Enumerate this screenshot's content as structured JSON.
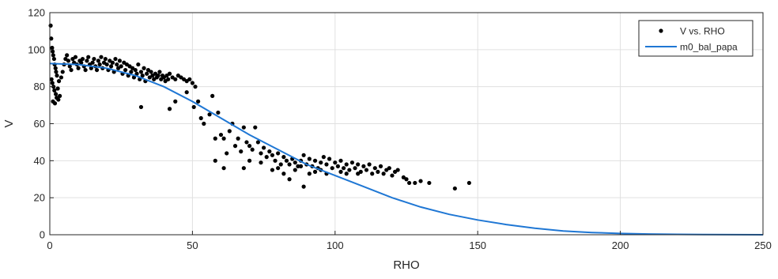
{
  "chart_data": {
    "type": "scatter",
    "title": "",
    "xlabel": "RHO",
    "ylabel": "V",
    "xlim": [
      0,
      250
    ],
    "ylim": [
      0,
      120
    ],
    "xticks": [
      "0",
      "50",
      "100",
      "150",
      "200",
      "250"
    ],
    "yticks": [
      "0",
      "20",
      "40",
      "60",
      "80",
      "100",
      "120"
    ],
    "grid": true,
    "legend_position": "top-right",
    "colors": {
      "scatter": "#000000",
      "fit": "#1f77d4",
      "grid": "#e0e0e0",
      "axes": "#262626"
    },
    "series": [
      {
        "name": "V vs. RHO",
        "kind": "scatter",
        "points": [
          [
            0.3,
            113
          ],
          [
            0.5,
            106
          ],
          [
            0.8,
            101
          ],
          [
            1,
            99
          ],
          [
            1.2,
            97
          ],
          [
            1.5,
            95
          ],
          [
            1.7,
            92
          ],
          [
            2,
            90
          ],
          [
            2.2,
            88
          ],
          [
            2.5,
            86
          ],
          [
            0.6,
            84
          ],
          [
            0.9,
            82
          ],
          [
            1.3,
            80
          ],
          [
            1.6,
            78
          ],
          [
            2.1,
            76
          ],
          [
            2.4,
            74
          ],
          [
            1.1,
            72
          ],
          [
            1.8,
            71
          ],
          [
            3,
            73
          ],
          [
            3.5,
            75
          ],
          [
            2.8,
            79
          ],
          [
            3.2,
            83
          ],
          [
            4,
            85
          ],
          [
            4.5,
            88
          ],
          [
            5,
            92
          ],
          [
            5.5,
            95
          ],
          [
            6,
            97
          ],
          [
            6.5,
            94
          ],
          [
            7,
            91
          ],
          [
            7.5,
            89
          ],
          [
            8,
            95
          ],
          [
            8.5,
            93
          ],
          [
            9,
            96
          ],
          [
            9.5,
            92
          ],
          [
            10,
            90
          ],
          [
            10.5,
            94
          ],
          [
            11,
            93
          ],
          [
            11.5,
            95
          ],
          [
            12,
            91
          ],
          [
            12.5,
            89
          ],
          [
            13,
            94
          ],
          [
            13.5,
            96
          ],
          [
            14,
            92
          ],
          [
            14.5,
            90
          ],
          [
            15,
            93
          ],
          [
            15.5,
            95
          ],
          [
            16,
            91
          ],
          [
            16.5,
            89
          ],
          [
            17,
            94
          ],
          [
            17.5,
            92
          ],
          [
            18,
            96
          ],
          [
            18.5,
            90
          ],
          [
            19,
            93
          ],
          [
            19.5,
            95
          ],
          [
            20,
            92
          ],
          [
            20.5,
            89
          ],
          [
            21,
            94
          ],
          [
            21.5,
            91
          ],
          [
            22,
            93
          ],
          [
            22.5,
            88
          ],
          [
            23,
            95
          ],
          [
            23.5,
            92
          ],
          [
            24,
            90
          ],
          [
            24.5,
            94
          ],
          [
            25,
            91
          ],
          [
            25.5,
            87
          ],
          [
            26,
            93
          ],
          [
            26.5,
            89
          ],
          [
            27,
            92
          ],
          [
            27.5,
            86
          ],
          [
            28,
            91
          ],
          [
            28.5,
            88
          ],
          [
            29,
            90
          ],
          [
            29.5,
            85
          ],
          [
            30,
            89
          ],
          [
            30.5,
            87
          ],
          [
            31,
            92
          ],
          [
            31.5,
            84
          ],
          [
            32,
            88
          ],
          [
            32.5,
            86
          ],
          [
            33,
            90
          ],
          [
            33.5,
            83
          ],
          [
            34,
            87
          ],
          [
            34.5,
            89
          ],
          [
            35,
            85
          ],
          [
            35.5,
            88
          ],
          [
            36,
            86
          ],
          [
            36.5,
            84
          ],
          [
            37,
            87
          ],
          [
            37.5,
            85
          ],
          [
            38,
            86
          ],
          [
            38.5,
            88
          ],
          [
            39,
            84
          ],
          [
            39.5,
            86
          ],
          [
            40,
            85
          ],
          [
            40.5,
            83
          ],
          [
            41,
            86
          ],
          [
            41.5,
            84
          ],
          [
            42,
            87
          ],
          [
            43,
            85
          ],
          [
            44,
            84
          ],
          [
            45,
            86
          ],
          [
            46,
            85
          ],
          [
            47,
            84
          ],
          [
            48,
            83
          ],
          [
            49,
            84
          ],
          [
            50,
            82
          ],
          [
            51,
            80
          ],
          [
            52,
            72
          ],
          [
            50.5,
            69
          ],
          [
            32,
            69
          ],
          [
            42,
            68
          ],
          [
            44,
            72
          ],
          [
            48,
            77
          ],
          [
            53,
            63
          ],
          [
            54,
            60
          ],
          [
            56,
            65
          ],
          [
            57,
            75
          ],
          [
            59,
            66
          ],
          [
            60,
            54
          ],
          [
            58,
            52
          ],
          [
            61,
            52
          ],
          [
            63,
            56
          ],
          [
            64,
            60
          ],
          [
            65,
            48
          ],
          [
            66,
            52
          ],
          [
            67,
            45
          ],
          [
            68,
            58
          ],
          [
            69,
            50
          ],
          [
            70,
            48
          ],
          [
            71,
            46
          ],
          [
            72,
            58
          ],
          [
            73,
            50
          ],
          [
            74,
            44
          ],
          [
            75,
            47
          ],
          [
            76,
            42
          ],
          [
            77,
            45
          ],
          [
            78,
            43
          ],
          [
            79,
            40
          ],
          [
            80,
            44
          ],
          [
            81,
            38
          ],
          [
            82,
            42
          ],
          [
            83,
            40
          ],
          [
            84,
            38
          ],
          [
            85,
            41
          ],
          [
            86,
            39
          ],
          [
            87,
            37
          ],
          [
            88,
            40
          ],
          [
            89,
            43
          ],
          [
            90,
            38
          ],
          [
            91,
            41
          ],
          [
            92,
            37
          ],
          [
            93,
            40
          ],
          [
            94,
            36
          ],
          [
            95,
            39
          ],
          [
            96,
            42
          ],
          [
            97,
            38
          ],
          [
            98,
            41
          ],
          [
            99,
            36
          ],
          [
            100,
            39
          ],
          [
            101,
            37
          ],
          [
            102,
            40
          ],
          [
            103,
            36
          ],
          [
            104,
            38
          ],
          [
            105,
            35
          ],
          [
            106,
            39
          ],
          [
            107,
            36
          ],
          [
            108,
            38
          ],
          [
            109,
            34
          ],
          [
            110,
            37
          ],
          [
            111,
            35
          ],
          [
            112,
            38
          ],
          [
            113,
            33
          ],
          [
            114,
            36
          ],
          [
            115,
            34
          ],
          [
            116,
            37
          ],
          [
            117,
            33
          ],
          [
            118,
            35
          ],
          [
            119,
            36
          ],
          [
            120,
            32
          ],
          [
            121,
            34
          ],
          [
            122,
            35
          ],
          [
            124,
            31
          ],
          [
            125,
            30
          ],
          [
            126,
            28
          ],
          [
            128,
            28
          ],
          [
            130,
            29
          ],
          [
            133,
            28
          ],
          [
            142,
            25
          ],
          [
            147,
            28
          ],
          [
            89,
            26
          ],
          [
            84,
            30
          ],
          [
            91,
            33
          ],
          [
            97,
            33
          ],
          [
            61,
            36
          ],
          [
            68,
            36
          ],
          [
            80,
            36
          ],
          [
            86,
            35
          ],
          [
            93,
            34
          ],
          [
            104,
            33
          ],
          [
            78,
            35
          ],
          [
            88,
            37
          ],
          [
            95,
            35
          ],
          [
            102,
            34
          ],
          [
            108,
            33
          ],
          [
            58,
            40
          ],
          [
            62,
            44
          ],
          [
            70,
            40
          ],
          [
            74,
            39
          ],
          [
            82,
            33
          ]
        ]
      },
      {
        "name": "m0_bal_papa",
        "kind": "line",
        "points": [
          [
            0,
            92.5
          ],
          [
            10,
            92
          ],
          [
            20,
            90
          ],
          [
            30,
            86
          ],
          [
            40,
            80
          ],
          [
            50,
            72
          ],
          [
            60,
            63
          ],
          [
            70,
            54
          ],
          [
            80,
            46
          ],
          [
            90,
            38
          ],
          [
            100,
            32
          ],
          [
            110,
            26
          ],
          [
            120,
            20
          ],
          [
            130,
            15
          ],
          [
            140,
            11
          ],
          [
            150,
            8
          ],
          [
            160,
            5.5
          ],
          [
            170,
            3.5
          ],
          [
            180,
            2
          ],
          [
            190,
            1.2
          ],
          [
            200,
            0.7
          ],
          [
            210,
            0.4
          ],
          [
            220,
            0.2
          ],
          [
            230,
            0.1
          ],
          [
            240,
            0.05
          ],
          [
            250,
            0
          ]
        ]
      }
    ]
  }
}
